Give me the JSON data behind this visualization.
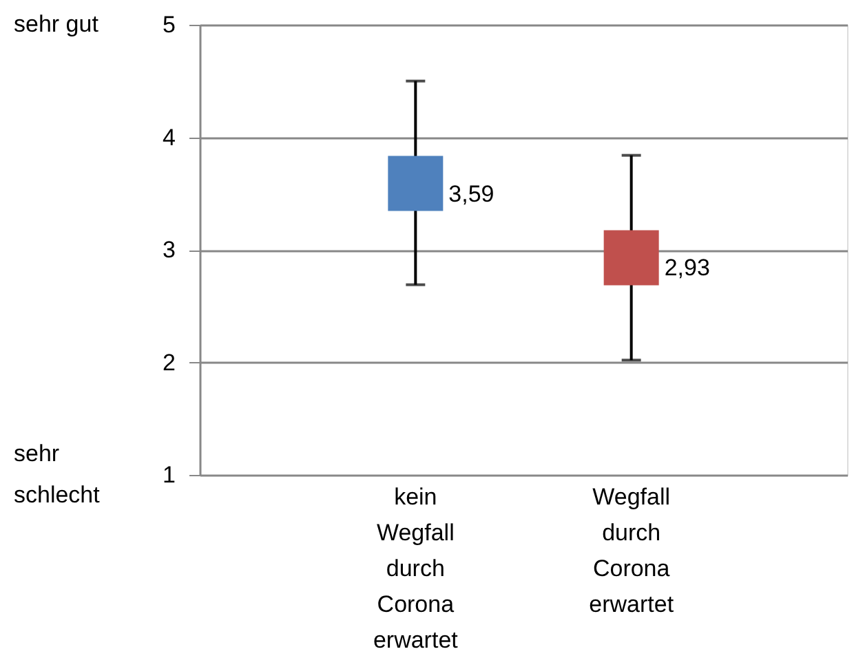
{
  "chart_data": {
    "type": "scatter",
    "marker": "square",
    "categories": [
      "kein Wegfall durch Corona erwartet",
      "Wegfall durch Corona erwartet"
    ],
    "values": [
      3.59,
      2.93
    ],
    "colors": [
      "#4f81bd",
      "#c0504d"
    ],
    "errors": [
      [
        2.69,
        4.5
      ],
      [
        2.02,
        3.84
      ]
    ],
    "value_labels": [
      "3,59",
      "2,93"
    ],
    "ylim": [
      1,
      5
    ],
    "yticks": [
      1,
      2,
      3,
      4,
      5
    ],
    "grid": "y",
    "annotations": [
      "sehr gut",
      "sehr schlecht"
    ]
  }
}
